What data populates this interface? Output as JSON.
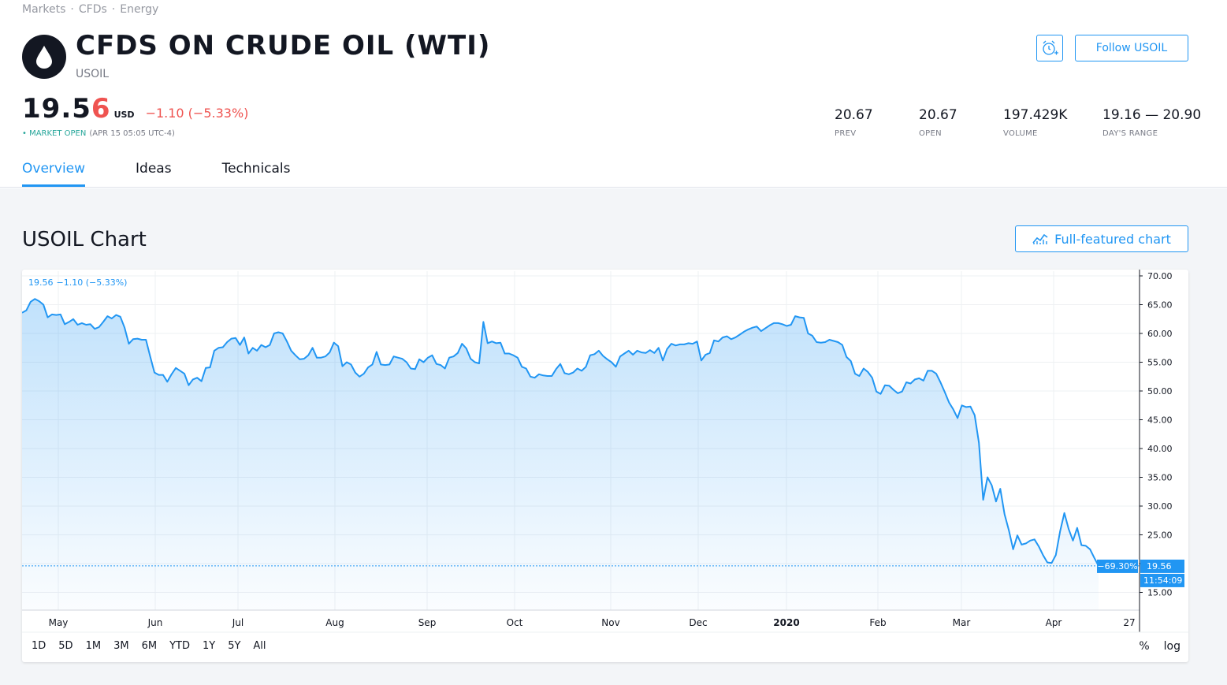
{
  "breadcrumbs": [
    "Markets",
    "CFDs",
    "Energy"
  ],
  "breadcrumb_sep": "·",
  "header": {
    "title": "CFDS ON CRUDE OIL (WTI)",
    "symbol": "USOIL",
    "follow_label": "Follow USOIL",
    "logo_icon": "oil-drop-icon",
    "alert_icon": "alarm-clock-plus-icon"
  },
  "quote": {
    "price_main": "19.5",
    "price_last_digit": "6",
    "currency": "USD",
    "change": "−1.10 (−5.33%)",
    "market_status": "• MARKET OPEN",
    "market_time": "(APR 15 05:05 UTC-4)"
  },
  "stats": [
    {
      "value": "20.67",
      "label": "PREV"
    },
    {
      "value": "20.67",
      "label": "OPEN"
    },
    {
      "value": "197.429K",
      "label": "VOLUME"
    },
    {
      "value": "19.16 — 20.90",
      "label": "DAY'S RANGE"
    }
  ],
  "tabs": [
    "Overview",
    "Ideas",
    "Technicals"
  ],
  "active_tab": 0,
  "section": {
    "title": "USOIL Chart",
    "full_chart_label": "Full-featured chart"
  },
  "chart_legend": {
    "price": "19.56",
    "change": "−1.10 (−5.33%)"
  },
  "range_buttons": [
    "1D",
    "5D",
    "1M",
    "3M",
    "6M",
    "YTD",
    "1Y",
    "5Y",
    "All"
  ],
  "scale_options": [
    "%",
    "log"
  ],
  "colors": {
    "accent": "#2196f3",
    "down": "#ef5350",
    "up": "#26a69a"
  },
  "chart_data": {
    "type": "area",
    "title": "",
    "xlabel": "",
    "ylabel": "",
    "x_ticks": [
      "May",
      "Jun",
      "Jul",
      "Aug",
      "Sep",
      "Oct",
      "Nov",
      "Dec",
      "2020",
      "Feb",
      "Mar",
      "Apr",
      "27"
    ],
    "y_ticks": [
      "70.00",
      "65.00",
      "60.00",
      "55.00",
      "50.00",
      "45.00",
      "40.00",
      "35.00",
      "30.00",
      "25.00",
      "20.00",
      "15.00"
    ],
    "ylim": [
      15,
      72
    ],
    "last_value_label": "19.56",
    "percent_label": "−69.30%",
    "time_label": "11:54:09",
    "grid": true,
    "series": [
      {
        "values": [
          63.6,
          64.0,
          65.5,
          66.0,
          65.6,
          65.0,
          62.8,
          63.3,
          63.2,
          63.3,
          61.6,
          62.0,
          62.5,
          61.5,
          61.8,
          61.5,
          61.6,
          60.8,
          61.1,
          62.0,
          63.0,
          62.6,
          63.2,
          62.9,
          61.0,
          58.2,
          59.0,
          59.1,
          58.9,
          58.9,
          56.0,
          53.2,
          52.8,
          52.8,
          51.6,
          52.9,
          54.0,
          53.5,
          53.0,
          51.0,
          52.0,
          52.3,
          51.7,
          54.0,
          54.1,
          57.0,
          57.5,
          57.6,
          58.5,
          59.1,
          59.2,
          58.0,
          59.3,
          56.5,
          57.5,
          57.0,
          58.0,
          57.6,
          58.0,
          60.0,
          60.2,
          60.0,
          58.6,
          57.0,
          56.2,
          55.5,
          55.6,
          56.2,
          57.5,
          55.8,
          55.8,
          56.0,
          56.7,
          58.4,
          57.8,
          54.3,
          55.0,
          54.6,
          53.2,
          52.5,
          53.0,
          54.1,
          54.6,
          56.8,
          54.6,
          54.5,
          54.6,
          56.0,
          55.8,
          55.6,
          55.0,
          53.9,
          53.8,
          55.5,
          55.0,
          55.8,
          56.2,
          54.7,
          54.5,
          53.9,
          55.8,
          56.0,
          56.6,
          58.2,
          57.4,
          55.6,
          55.0,
          54.8,
          62.0,
          58.3,
          58.6,
          58.3,
          58.4,
          56.5,
          56.5,
          56.2,
          55.8,
          54.2,
          53.9,
          52.5,
          52.3,
          52.9,
          52.7,
          52.6,
          52.6,
          53.8,
          54.7,
          53.1,
          52.9,
          53.2,
          53.9,
          53.5,
          54.2,
          56.2,
          56.4,
          57.0,
          56.1,
          55.5,
          55.0,
          54.2,
          56.0,
          56.5,
          57.0,
          56.3,
          57.0,
          56.7,
          56.6,
          57.1,
          56.6,
          57.5,
          55.3,
          57.3,
          58.2,
          57.9,
          58.1,
          58.1,
          58.3,
          58.2,
          58.6,
          55.3,
          56.3,
          56.6,
          58.8,
          58.6,
          59.3,
          59.5,
          59.0,
          59.3,
          59.8,
          60.3,
          60.7,
          61.0,
          61.2,
          60.4,
          60.9,
          61.4,
          61.8,
          61.8,
          61.6,
          61.3,
          61.5,
          63.0,
          62.8,
          62.7,
          60.0,
          59.6,
          58.5,
          58.4,
          58.5,
          58.9,
          58.7,
          58.5,
          58.0,
          55.9,
          55.2,
          53.0,
          52.6,
          53.9,
          53.3,
          52.3,
          49.9,
          49.5,
          51.0,
          50.9,
          50.2,
          49.6,
          49.9,
          51.5,
          51.3,
          52.0,
          52.2,
          51.8,
          53.5,
          53.5,
          53.0,
          51.5,
          49.8,
          48.0,
          46.8,
          45.3,
          47.5,
          47.2,
          47.3,
          45.8,
          41.0,
          31.1,
          35.0,
          33.6,
          30.8,
          33.0,
          28.6,
          25.8,
          22.5,
          24.9,
          23.3,
          23.5,
          24.0,
          24.2,
          23.0,
          21.5,
          20.2,
          20.1,
          21.5,
          25.6,
          28.8,
          26.0,
          24.0,
          26.2,
          23.2,
          23.1,
          22.5,
          21.0,
          19.6
        ]
      }
    ]
  }
}
